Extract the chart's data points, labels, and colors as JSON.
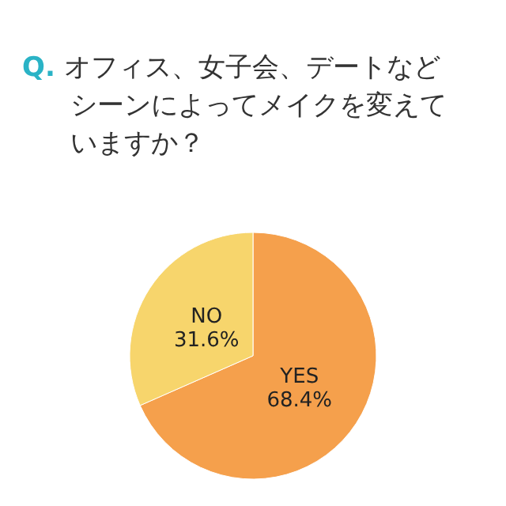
{
  "chart_data": {
    "type": "pie",
    "title": "Q. オフィス、女子会、デートなどシーンによってメイクを変えていますか？",
    "categories": [
      "YES",
      "NO"
    ],
    "values": [
      68.4,
      31.6
    ],
    "value_labels": [
      "68.4%",
      "31.6%"
    ],
    "colors": [
      "#f5a04c",
      "#f7d56c"
    ]
  }
}
